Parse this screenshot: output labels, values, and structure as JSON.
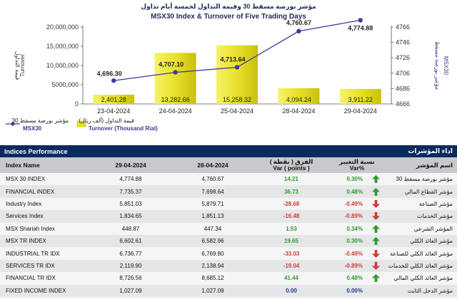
{
  "chart_data": {
    "type": "bar+line",
    "title_ar": "مؤشر بورصة مسقط 30 وقيمة التداول لخمسة أيام تداول",
    "title": "MSX30 Index & Turnover of Five Trading Days",
    "categories": [
      "23-04-2024",
      "24-04-2024",
      "25-04-2024",
      "28-04-2024",
      "29-04-2024"
    ],
    "series": [
      {
        "name": "Turnover (Thousand Rial)",
        "name_ar": "قيمة التداول (ألف ريال)",
        "kind": "bar",
        "axis": "left",
        "values": [
          2401.28,
          13282.66,
          15258.32,
          4094.24,
          3911.22
        ],
        "labels": [
          "2,401.28",
          "13,282.66",
          "15,258.32",
          "4,094.24",
          "3,911.22"
        ]
      },
      {
        "name": "MSX30",
        "name_ar": "مؤشر بورصة مسقط 30",
        "kind": "line",
        "axis": "right",
        "values": [
          4696.3,
          4707.1,
          4713.64,
          4760.67,
          4774.88
        ],
        "labels": [
          "4,696.30",
          "4,707.10",
          "4,713.64",
          "4,760.67",
          "4,774.88"
        ]
      }
    ],
    "left_axis": {
      "title": "Turnover",
      "title_ar": "قيمة التداول",
      "min": 0,
      "max": 20000000,
      "ticks": [
        "0",
        "5000,000",
        "10,000,000",
        "15,000,000",
        "20,000,000"
      ]
    },
    "right_axis": {
      "title": "MSX30",
      "title_ar": "مؤشر بورصة مسقط",
      "min": 4666,
      "max": 4766,
      "ticks": [
        "4666",
        "4686",
        "4706",
        "4726",
        "4746",
        "4766"
      ]
    },
    "colors": {
      "bar": "#e8e02a",
      "line": "#3b3b9e",
      "axis_right": "#3d3a8c"
    },
    "legend_placement": "bottom-left"
  },
  "table": {
    "title": "Indices Performance",
    "title_ar": "اداء المؤشرات",
    "columns": {
      "name": "Index Name",
      "today": "29-04-2024",
      "prev": "28-04-2024",
      "var_ar": "الفرق ( نقطة )",
      "var": "Var ( points )",
      "pct_ar": "نسبة التغيير",
      "pct": "Var%",
      "name_ar": "اسم المؤشر"
    },
    "rows": [
      {
        "name": "MSX 30 INDEX",
        "today": "4,774.88",
        "prev": "4,760.67",
        "var": "14.21",
        "pct": "0.30%",
        "dir": "up",
        "name_ar": "مؤشر بورصة مسقط 30"
      },
      {
        "name": "FINANCIAL INDEX",
        "today": "7,735.37",
        "prev": "7,698.64",
        "var": "36.73",
        "pct": "0.48%",
        "dir": "up",
        "name_ar": "مؤشر القطاع المالي"
      },
      {
        "name": "Industry Index",
        "today": "5,851.03",
        "prev": "5,879.71",
        "var": "-28.68",
        "pct": "-0.49%",
        "dir": "down",
        "name_ar": "مؤشر الصناعة"
      },
      {
        "name": "Services Index",
        "today": "1,834.65",
        "prev": "1,851.13",
        "var": "-16.48",
        "pct": "-0.89%",
        "dir": "down",
        "name_ar": "مؤشر الخدمات"
      },
      {
        "name": "MSX Shariah Index",
        "today": "448.87",
        "prev": "447.34",
        "var": "1.53",
        "pct": "0.34%",
        "dir": "up",
        "name_ar": "المؤشر الشرعي"
      },
      {
        "name": "MSX TR INDEX",
        "today": "6,602.61",
        "prev": "6,582.96",
        "var": "19.65",
        "pct": "0.30%",
        "dir": "up",
        "name_ar": "مؤشر العائد الكلي"
      },
      {
        "name": "INDUSTRIAL TR IDX",
        "today": "6,736.77",
        "prev": "6,769.80",
        "var": "-33.03",
        "pct": "-0.49%",
        "dir": "down",
        "name_ar": "مؤشر العائد الكلي للصناعة"
      },
      {
        "name": "SERVICES TR IDX",
        "today": "2,119.90",
        "prev": "2,138.94",
        "var": "-19.04",
        "pct": "-0.89%",
        "dir": "down",
        "name_ar": "مؤشر العائد الكلي للخدمات"
      },
      {
        "name": "FINANCIAL TR IDX",
        "today": "8,726.56",
        "prev": "8,685.12",
        "var": "41.44",
        "pct": "0.48%",
        "dir": "up",
        "name_ar": "مؤشر العائد الكلي المالي"
      },
      {
        "name": "FIXED INCOME INDEX",
        "today": "1,027.09",
        "prev": "1,027.09",
        "var": "0.00",
        "pct": "0.00%",
        "dir": "flat",
        "name_ar": "مؤشر الدخل الثابت"
      }
    ],
    "colors": {
      "header_bg": "#0b2a5e",
      "up": "#2f9a2f",
      "down": "#d23b3b",
      "flat": "#1c3c8c"
    }
  }
}
